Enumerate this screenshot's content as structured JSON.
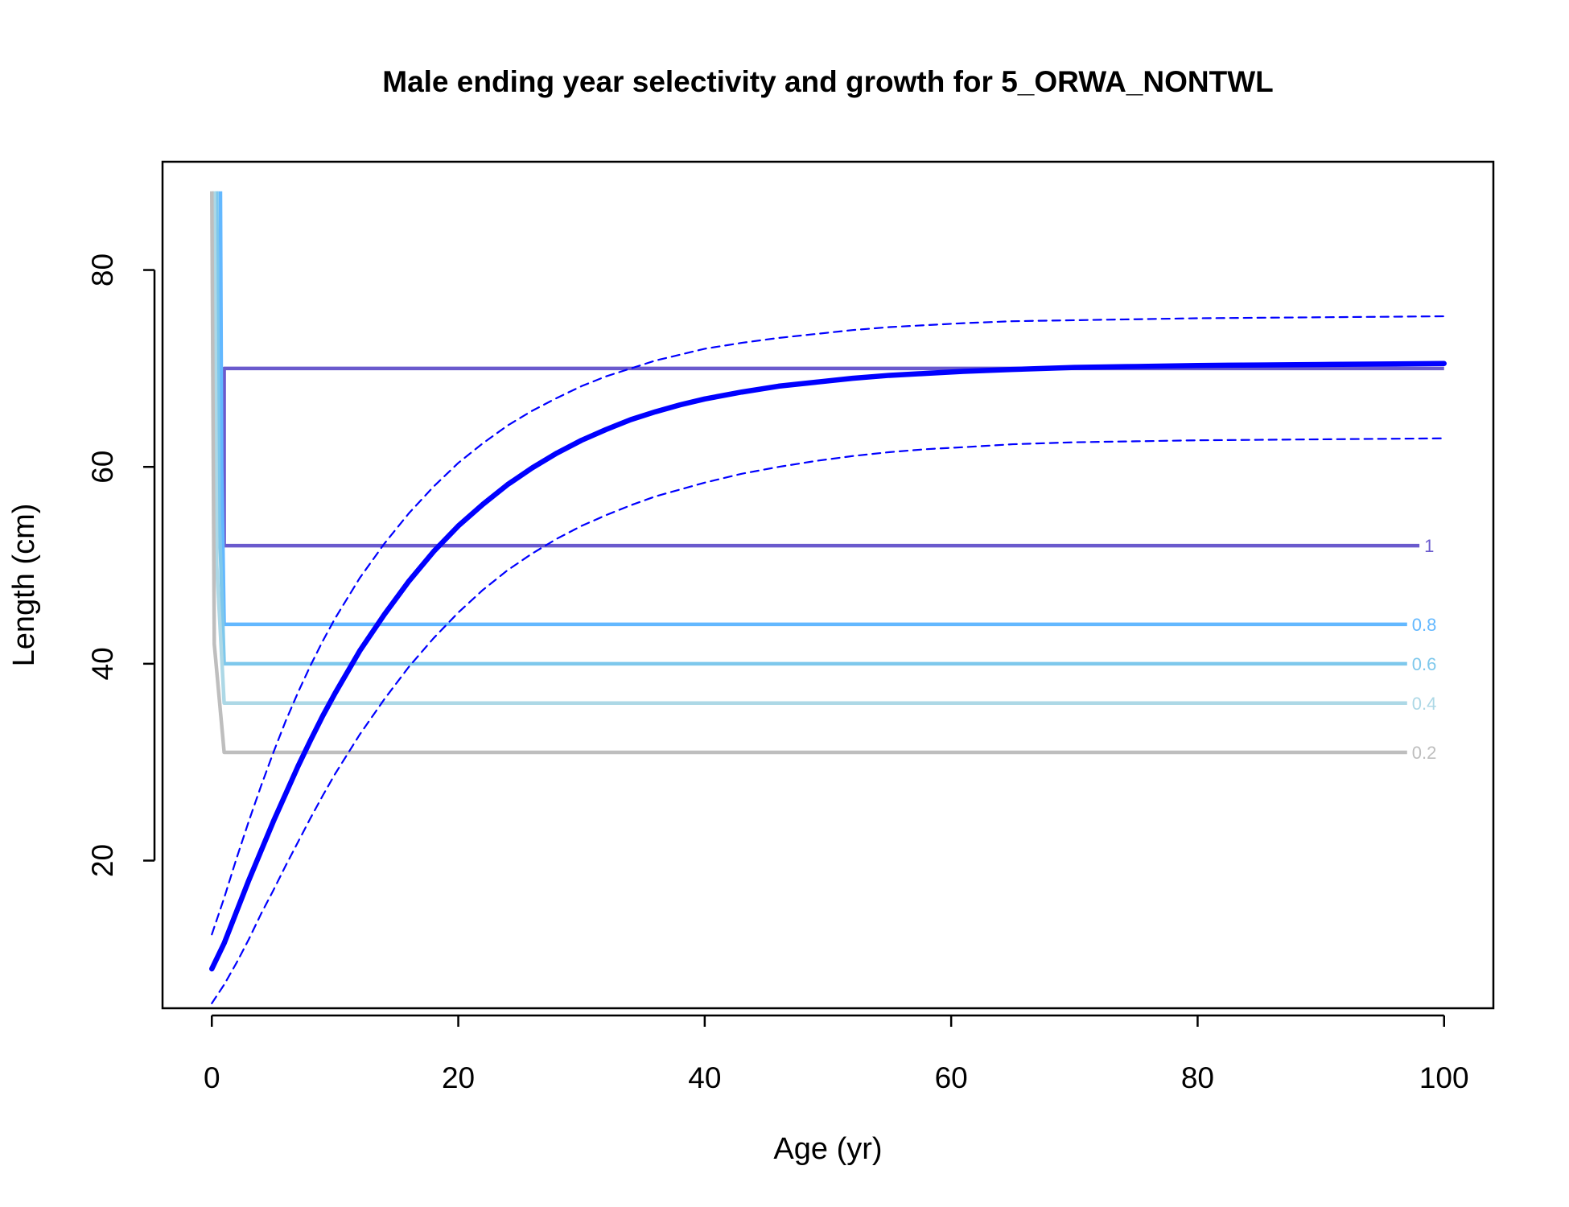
{
  "chart_data": {
    "type": "line",
    "title": "Male ending year selectivity and growth for 5_ORWA_NONTWL",
    "xlabel": "Age (yr)",
    "ylabel": "Length (cm)",
    "xlim": [
      -4,
      104
    ],
    "ylim": [
      5,
      91
    ],
    "x_ticks": [
      0,
      20,
      40,
      60,
      80,
      100
    ],
    "y_ticks": [
      20,
      40,
      60,
      80
    ],
    "x_tick_labels": [
      "0",
      "20",
      "40",
      "60",
      "80",
      "100"
    ],
    "y_tick_labels": [
      "20",
      "40",
      "60",
      "80"
    ],
    "colors": {
      "growth": "#0000ff",
      "c1": "#6a5acd",
      "c08": "#63b8ff",
      "c06": "#7ec8ec",
      "c04": "#add8e6",
      "c02": "#bebebe"
    },
    "growth_series": [
      {
        "name": "mean length at age",
        "style": "solid-thick",
        "x": [
          0,
          1,
          2,
          3,
          4,
          5,
          6,
          7,
          8,
          9,
          10,
          12,
          14,
          16,
          18,
          20,
          22,
          24,
          26,
          28,
          30,
          32,
          34,
          36,
          38,
          40,
          43,
          46,
          49,
          52,
          55,
          58,
          61,
          65,
          70,
          75,
          80,
          85,
          90,
          95,
          100
        ],
        "y": [
          9.0,
          11.6,
          14.8,
          18.0,
          21.0,
          24.0,
          26.8,
          29.6,
          32.2,
          34.7,
          37.0,
          41.3,
          45.0,
          48.4,
          51.4,
          54.0,
          56.2,
          58.2,
          59.9,
          61.4,
          62.7,
          63.8,
          64.8,
          65.6,
          66.3,
          66.9,
          67.6,
          68.2,
          68.6,
          69.0,
          69.3,
          69.5,
          69.7,
          69.9,
          70.1,
          70.2,
          70.3,
          70.35,
          70.4,
          70.45,
          70.5
        ]
      },
      {
        "name": "upper interval",
        "style": "dashed",
        "x": [
          0,
          1,
          2,
          3,
          4,
          5,
          6,
          7,
          8,
          9,
          10,
          12,
          14,
          16,
          18,
          20,
          22,
          24,
          26,
          28,
          30,
          32,
          34,
          36,
          38,
          40,
          43,
          46,
          49,
          52,
          55,
          58,
          61,
          65,
          70,
          75,
          80,
          85,
          90,
          95,
          100
        ],
        "y": [
          12.5,
          16.2,
          20.2,
          24.0,
          27.6,
          31.0,
          34.2,
          37.1,
          39.8,
          42.3,
          44.6,
          48.7,
          52.2,
          55.3,
          58.0,
          60.4,
          62.4,
          64.2,
          65.7,
          67.0,
          68.2,
          69.2,
          70.0,
          70.8,
          71.4,
          72.0,
          72.6,
          73.1,
          73.5,
          73.9,
          74.2,
          74.4,
          74.6,
          74.8,
          74.9,
          75.0,
          75.1,
          75.15,
          75.2,
          75.25,
          75.3
        ]
      },
      {
        "name": "lower interval",
        "style": "dashed",
        "x": [
          0,
          1,
          2,
          3,
          4,
          5,
          6,
          7,
          8,
          9,
          10,
          12,
          14,
          16,
          18,
          20,
          22,
          24,
          26,
          28,
          30,
          32,
          34,
          36,
          38,
          40,
          43,
          46,
          49,
          52,
          55,
          58,
          61,
          65,
          70,
          75,
          80,
          85,
          90,
          95,
          100
        ],
        "y": [
          5.5,
          7.4,
          9.6,
          12.0,
          14.6,
          17.0,
          19.5,
          21.9,
          24.3,
          26.6,
          28.8,
          32.8,
          36.4,
          39.7,
          42.6,
          45.2,
          47.5,
          49.5,
          51.2,
          52.7,
          54.0,
          55.1,
          56.1,
          57.0,
          57.7,
          58.4,
          59.3,
          60.0,
          60.6,
          61.1,
          61.5,
          61.8,
          62.0,
          62.3,
          62.5,
          62.6,
          62.7,
          62.75,
          62.8,
          62.85,
          62.9
        ]
      }
    ],
    "selectivity_contours": [
      {
        "label": "1",
        "color_key": "c1",
        "x": [
          1.0,
          1.0,
          100
        ],
        "y": [
          52,
          70,
          70
        ],
        "x_end": 98,
        "y_level": 52
      },
      {
        "label": "0.8",
        "color_key": "c08",
        "x": [
          0.7,
          0.8,
          1.0
        ],
        "y": [
          88,
          60,
          44
        ],
        "x_end": 97,
        "y_level": 44
      },
      {
        "label": "0.6",
        "color_key": "c06",
        "x": [
          0.4,
          0.6,
          1.0
        ],
        "y": [
          88,
          55,
          40
        ],
        "x_end": 97,
        "y_level": 40
      },
      {
        "label": "0.4",
        "color_key": "c04",
        "x": [
          0.2,
          0.4,
          1.0
        ],
        "y": [
          88,
          50,
          36
        ],
        "x_end": 97,
        "y_level": 36
      },
      {
        "label": "0.2",
        "color_key": "c02",
        "x": [
          0.0,
          0.2,
          1.0
        ],
        "y": [
          88,
          42,
          31
        ],
        "x_end": 97,
        "y_level": 31
      }
    ]
  }
}
